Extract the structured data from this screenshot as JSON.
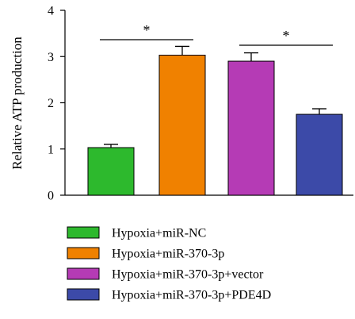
{
  "chart_data": {
    "type": "bar",
    "ylabel": "Relative ATP production",
    "ylim": [
      0,
      4
    ],
    "yticks": [
      "0",
      "1",
      "2",
      "3",
      "4"
    ],
    "grid": false,
    "legend_position": "bottom",
    "categories": [
      "Hypoxia+miR-NC",
      "Hypoxia+miR-370-3p",
      "Hypoxia+miR-370-3p+vector",
      "Hypoxia+miR-370-3p+PDE4D"
    ],
    "values": [
      1.03,
      3.03,
      2.9,
      1.75
    ],
    "error_upper": [
      1.1,
      3.22,
      3.08,
      1.87
    ],
    "colors": [
      "#2DB92D",
      "#F08100",
      "#B53BB5",
      "#3C4AA8"
    ],
    "significance": [
      {
        "from": 0,
        "to": 1,
        "label": "*"
      },
      {
        "from": 2,
        "to": 3,
        "label": "*"
      }
    ]
  }
}
